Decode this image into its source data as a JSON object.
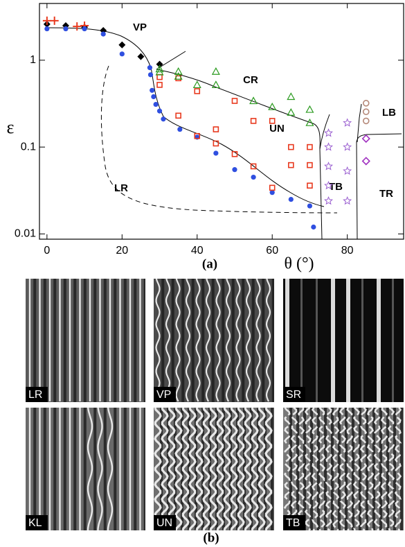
{
  "chart_data": {
    "type": "scatter",
    "y_label": "ε",
    "x_label": "θ (°)",
    "panel_label": "(a)",
    "xlim": [
      -2,
      95
    ],
    "ylim": [
      0.0087,
      4.5
    ],
    "log_y": true,
    "xticks": [
      0,
      20,
      40,
      60,
      80
    ],
    "yticks": [
      0.01,
      0.1,
      1
    ],
    "annotations": [
      "VP",
      "CR",
      "UN",
      "LR",
      "TB",
      "LB",
      "TR"
    ],
    "series": [
      {
        "color": "#000000",
        "marker": "diamond-filled",
        "x": [
          0,
          5,
          10,
          15,
          20,
          25,
          30
        ],
        "values": [
          2.6,
          2.5,
          2.4,
          2.2,
          1.5,
          1.1,
          0.9
        ]
      },
      {
        "color": "#e8391e",
        "marker": "plus",
        "x": [
          0,
          2,
          8,
          10
        ],
        "values": [
          2.85,
          2.85,
          2.45,
          2.5
        ]
      },
      {
        "color": "#2f4fe0",
        "marker": "circle-filled",
        "x": [
          0,
          5,
          10,
          15,
          20,
          27.4,
          27.6,
          28,
          28.4,
          29,
          30,
          31,
          35.4,
          40,
          45,
          50,
          55,
          60,
          65,
          70,
          71
        ],
        "values": [
          2.3,
          2.3,
          2.3,
          2.0,
          1.18,
          0.82,
          0.68,
          0.45,
          0.38,
          0.31,
          0.26,
          0.21,
          0.16,
          0.13,
          0.085,
          0.055,
          0.045,
          0.03,
          0.025,
          0.021,
          0.012
        ]
      },
      {
        "color": "#e8391e",
        "marker": "square-open",
        "x": [
          30,
          30,
          35,
          35,
          40,
          40,
          45,
          45,
          50,
          50,
          55,
          55,
          60,
          60,
          65,
          65,
          70,
          70,
          70
        ],
        "values": [
          0.64,
          0.52,
          0.62,
          0.23,
          0.44,
          0.134,
          0.16,
          0.11,
          0.34,
          0.083,
          0.2,
          0.06,
          0.2,
          0.034,
          0.1,
          0.062,
          0.1,
          0.062,
          0.036
        ]
      },
      {
        "color": "#2a9a1e",
        "marker": "triangle-open",
        "x": [
          30,
          30,
          35,
          35,
          40,
          45,
          45,
          55,
          60,
          65,
          65,
          70,
          70
        ],
        "values": [
          0.79,
          0.73,
          0.74,
          0.65,
          0.52,
          0.74,
          0.52,
          0.34,
          0.29,
          0.38,
          0.25,
          0.27,
          0.19
        ]
      },
      {
        "color": "#9a5fd0",
        "marker": "star-open",
        "x": [
          75,
          75,
          75,
          75,
          75,
          80,
          80,
          80,
          80
        ],
        "values": [
          0.145,
          0.1,
          0.06,
          0.036,
          0.024,
          0.19,
          0.1,
          0.053,
          0.024
        ]
      },
      {
        "color": "#b58878",
        "marker": "circle-open",
        "x": [
          85,
          85,
          85
        ],
        "values": [
          0.32,
          0.255,
          0.2
        ]
      },
      {
        "color": "#a030c0",
        "marker": "diamond-open",
        "x": [
          85,
          85
        ],
        "values": [
          0.125,
          0.069
        ]
      }
    ]
  },
  "figure_b": {
    "label": "(b)",
    "panels": [
      "LR",
      "VP",
      "SR",
      "KL",
      "UN",
      "TB"
    ]
  }
}
